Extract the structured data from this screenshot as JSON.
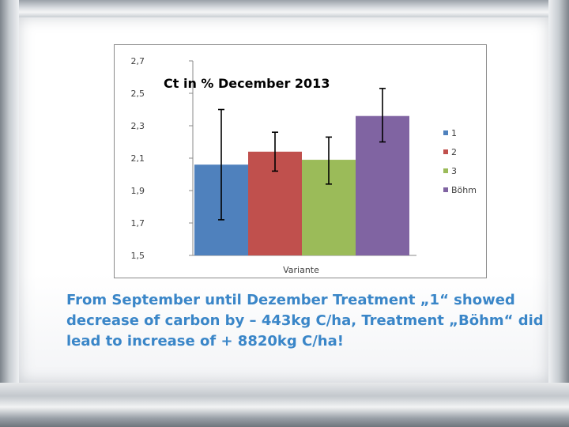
{
  "caption": "From September until Dezember Treatment „1“ showed decrease of carbon by – 443kg C/ha, Treatment „Böhm“ did lead to increase of + 8820kg C/ha!",
  "chart_data": {
    "type": "bar",
    "title": "Ct in % December 2013",
    "xlabel": "Variante",
    "ylabel": "",
    "ylim": [
      1.5,
      2.7
    ],
    "yticks": [
      "2,7",
      "2,5",
      "2,3",
      "2,1",
      "1,9",
      "1,7",
      "1,5"
    ],
    "ytick_values": [
      2.7,
      2.5,
      2.3,
      2.1,
      1.9,
      1.7,
      1.5
    ],
    "grid": false,
    "legend_position": "right",
    "series": [
      {
        "name": "1",
        "value": 2.06,
        "err_low": 1.72,
        "err_high": 2.4,
        "color": "#4f81bd"
      },
      {
        "name": "2",
        "value": 2.14,
        "err_low": 2.02,
        "err_high": 2.26,
        "color": "#c0504d"
      },
      {
        "name": "3",
        "value": 2.09,
        "err_low": 1.94,
        "err_high": 2.23,
        "color": "#9bbb59"
      },
      {
        "name": "Böhm",
        "value": 2.36,
        "err_low": 2.2,
        "err_high": 2.53,
        "color": "#8064a2"
      }
    ]
  }
}
